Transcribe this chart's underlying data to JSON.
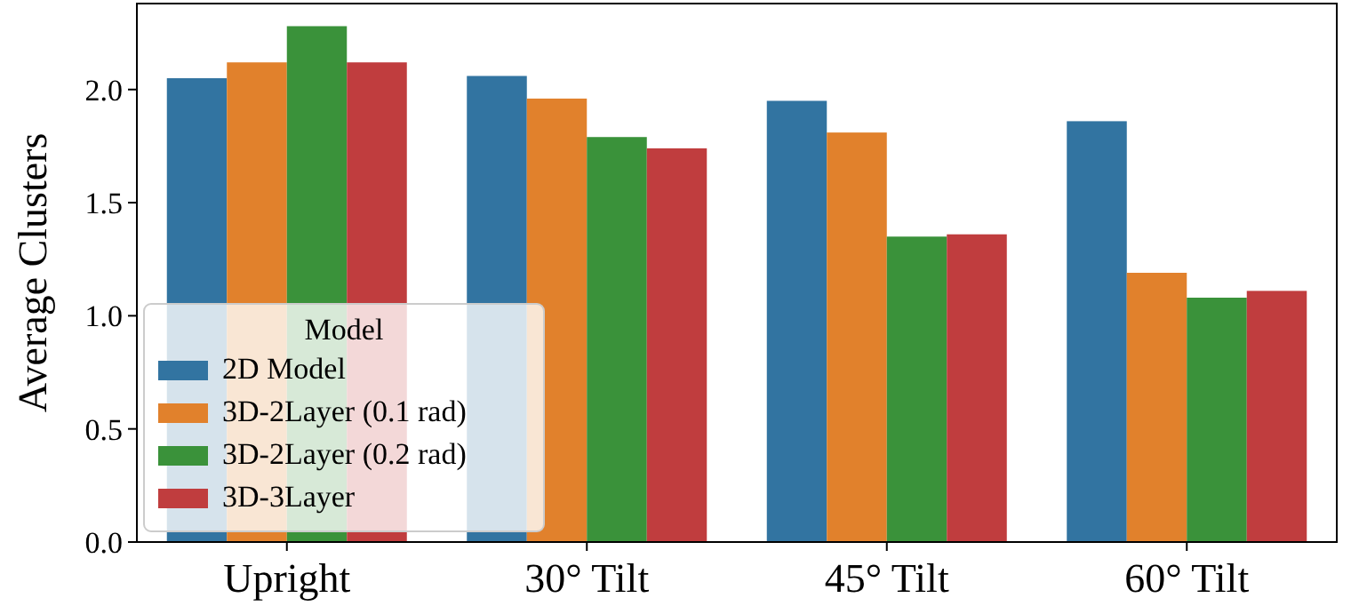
{
  "chart_data": {
    "type": "bar",
    "ylabel": "Average Clusters",
    "legend_title": "Model",
    "legend": "bottom left",
    "categories": [
      "Upright",
      "30° Tilt",
      "45° Tilt",
      "60° Tilt"
    ],
    "ylim": [
      0,
      2.38
    ],
    "yticks": [
      {
        "value": 0,
        "label": "0.0"
      },
      {
        "value": 0.5,
        "label": "0.5"
      },
      {
        "value": 1,
        "label": "1.0"
      },
      {
        "value": 1.5,
        "label": "1.5"
      },
      {
        "value": 2,
        "label": "2.0"
      }
    ],
    "series": [
      {
        "name": "2D Model",
        "color": "#3274a1",
        "values": [
          2.05,
          2.06,
          1.95,
          1.86
        ]
      },
      {
        "name": "3D-2Layer (0.1 rad)",
        "color": "#e1812c",
        "values": [
          2.12,
          1.96,
          1.81,
          1.19
        ]
      },
      {
        "name": "3D-2Layer (0.2 rad)",
        "color": "#3a923a",
        "values": [
          2.28,
          1.79,
          1.35,
          1.08
        ]
      },
      {
        "name": "3D-3Layer",
        "color": "#c03d3e",
        "values": [
          2.12,
          1.74,
          1.36,
          1.11
        ]
      }
    ]
  }
}
